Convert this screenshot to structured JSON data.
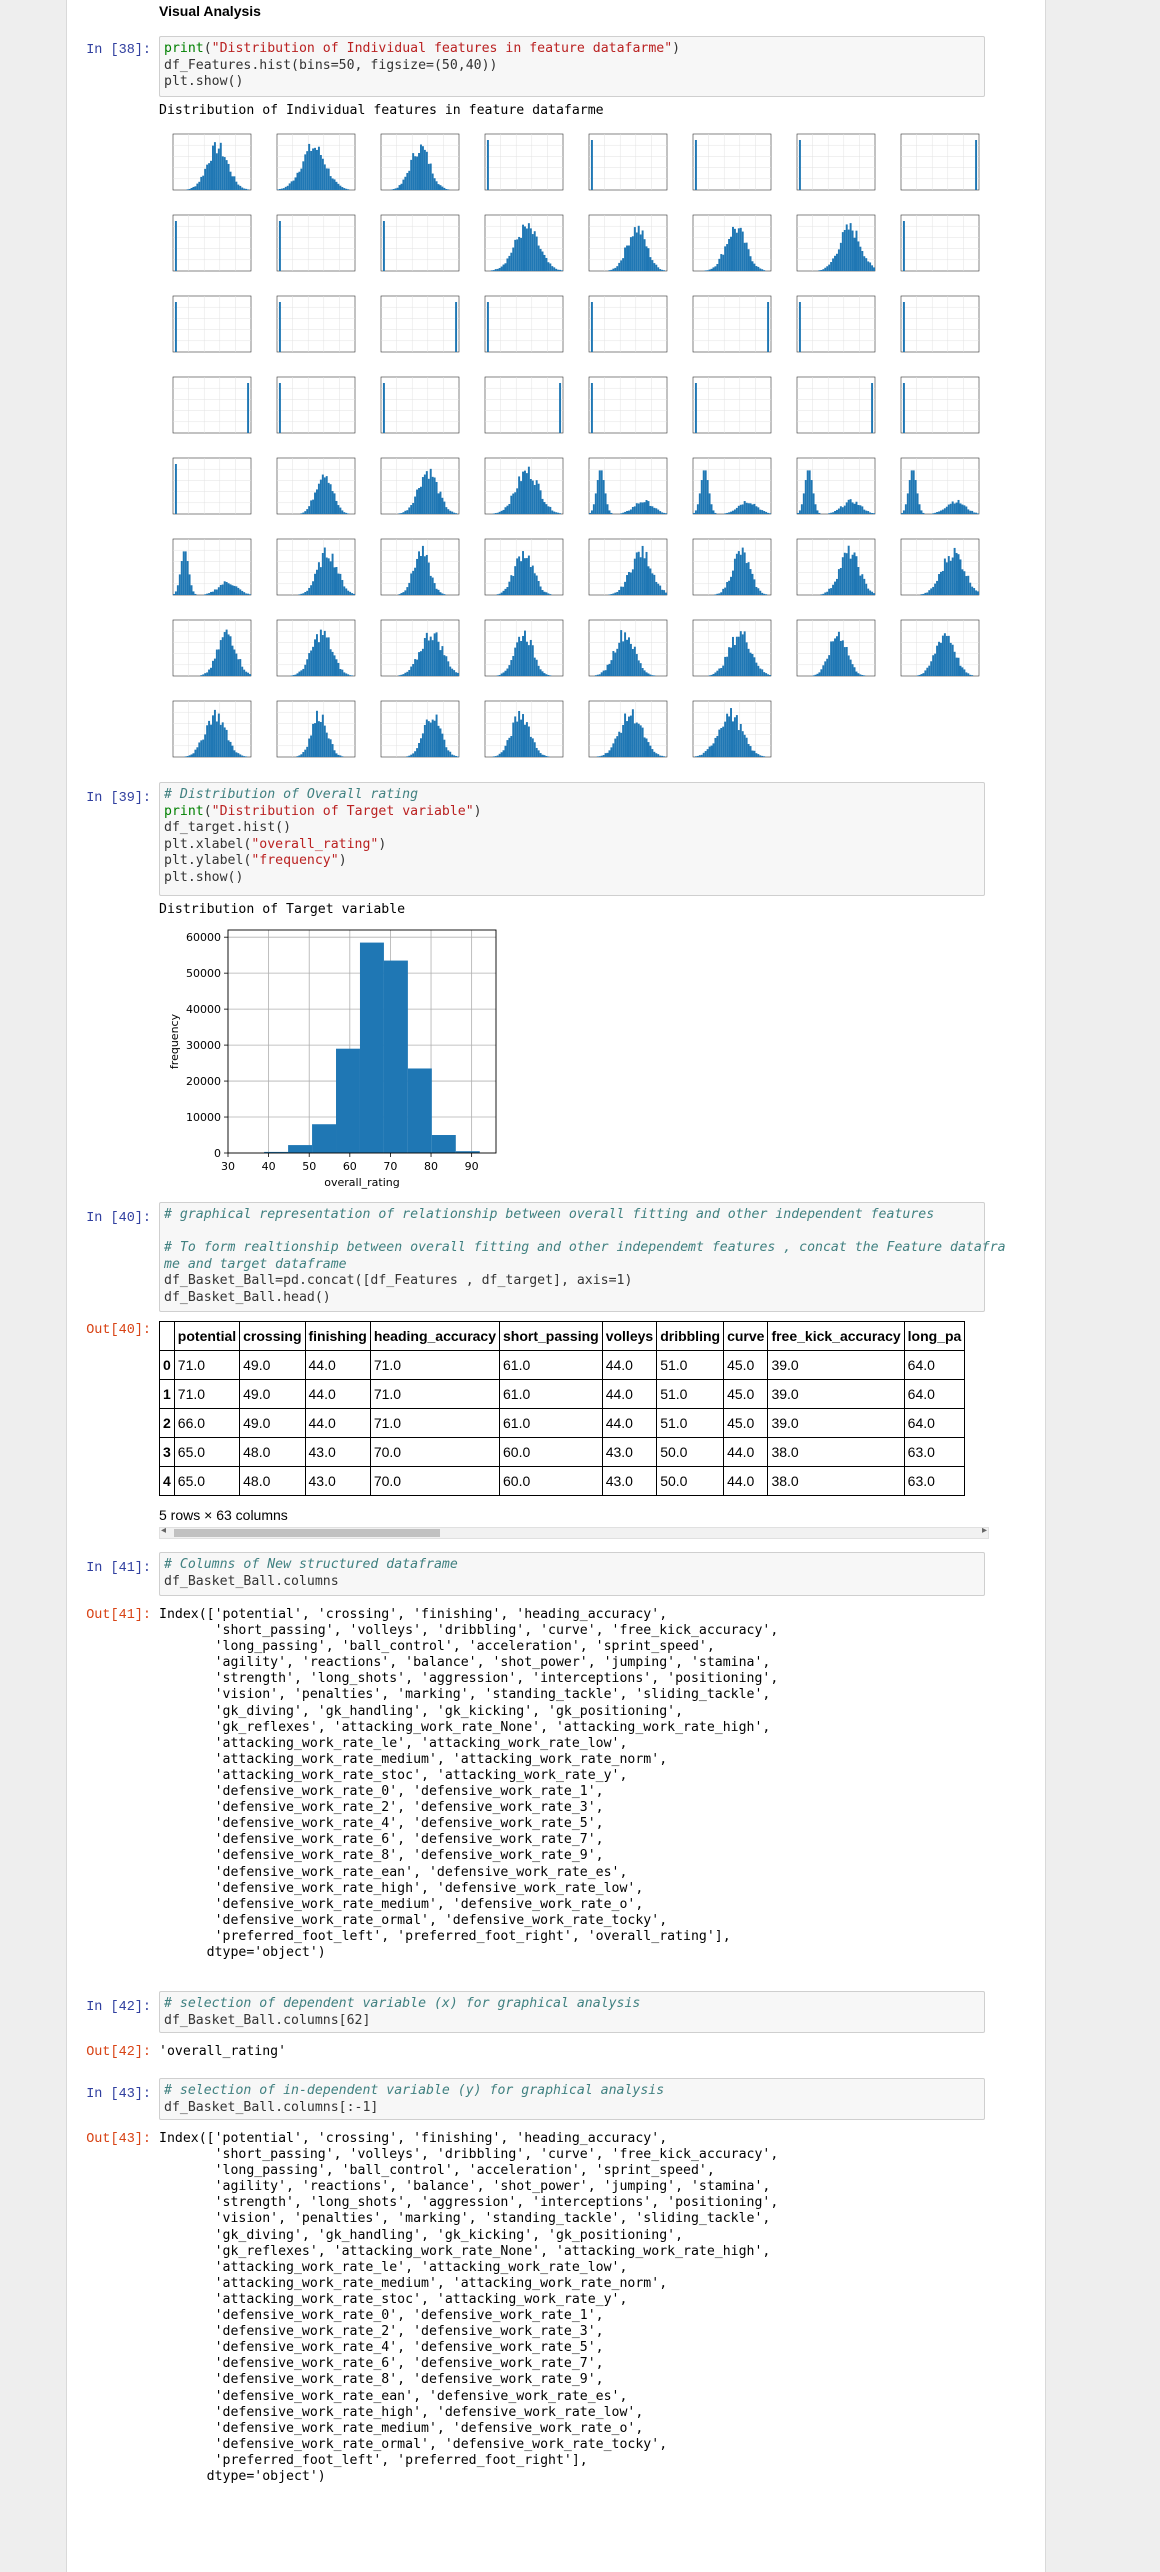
{
  "section_heading": "Visual Analysis",
  "cells": [
    {
      "in": "In [38]:"
    },
    {
      "in": "In [39]:"
    },
    {
      "in": "In [40]:",
      "out": "Out[40]:"
    },
    {
      "in": "In [41]:",
      "out": "Out[41]:"
    },
    {
      "in": "In [42]:",
      "out": "Out[42]:"
    },
    {
      "in": "In [43]:",
      "out": "Out[43]:"
    }
  ],
  "cell38": {
    "code1_fn": "print",
    "code1_str": "\"Distribution of Individual features in feature datafarme\"",
    "code2": "df_Features.hist(bins=50, figsize=(50,40))",
    "code3": "plt.show()",
    "output_text": "Distribution of Individual features in feature datafarme"
  },
  "cell39": {
    "comment": "# Distribution of Overall rating",
    "print_fn": "print",
    "print_str": "\"Distribution of Target variable\"",
    "line3": "df_target.hist()",
    "xlabel_call": "plt.xlabel(",
    "xlabel_str": "\"overall_rating\"",
    "ylabel_call": "plt.ylabel(",
    "ylabel_str": "\"frequency\"",
    "line6": "plt.show()",
    "output_text": "Distribution of Target variable"
  },
  "chart_data": {
    "type": "bar",
    "title": "",
    "xlabel": "overall_rating",
    "ylabel": "frequency",
    "xlim": [
      30,
      96
    ],
    "ylim": [
      0,
      62000
    ],
    "x_ticks": [
      30,
      40,
      50,
      60,
      70,
      80,
      90
    ],
    "y_ticks": [
      0,
      10000,
      20000,
      30000,
      40000,
      50000,
      60000
    ],
    "grid": true,
    "bins": [
      {
        "x0": 33.0,
        "x1": 38.9,
        "value": 0
      },
      {
        "x0": 38.9,
        "x1": 44.8,
        "value": 300
      },
      {
        "x0": 44.8,
        "x1": 50.7,
        "value": 2200
      },
      {
        "x0": 50.7,
        "x1": 56.6,
        "value": 8000
      },
      {
        "x0": 56.6,
        "x1": 62.5,
        "value": 29000
      },
      {
        "x0": 62.5,
        "x1": 68.4,
        "value": 58500
      },
      {
        "x0": 68.4,
        "x1": 74.3,
        "value": 53500
      },
      {
        "x0": 74.3,
        "x1": 80.2,
        "value": 23500
      },
      {
        "x0": 80.2,
        "x1": 86.1,
        "value": 5000
      },
      {
        "x0": 86.1,
        "x1": 92.0,
        "value": 500
      }
    ]
  },
  "cell40": {
    "comment1": "# graphical representation of relationship between overall fitting and other independent features",
    "comment2": "# To form realtionship between overall fitting and other independemt features , concat the Feature datafra",
    "comment3": "me and target dataframe",
    "line4": "df_Basket_Ball=pd.concat([df_Features , df_target], axis=1)",
    "line5": "df_Basket_Ball.head()",
    "columns": [
      "",
      "potential",
      "crossing",
      "finishing",
      "heading_accuracy",
      "short_passing",
      "volleys",
      "dribbling",
      "curve",
      "free_kick_accuracy",
      "long_pa"
    ],
    "rows": [
      [
        "0",
        "71.0",
        "49.0",
        "44.0",
        "71.0",
        "61.0",
        "44.0",
        "51.0",
        "45.0",
        "39.0",
        "64.0"
      ],
      [
        "1",
        "71.0",
        "49.0",
        "44.0",
        "71.0",
        "61.0",
        "44.0",
        "51.0",
        "45.0",
        "39.0",
        "64.0"
      ],
      [
        "2",
        "66.0",
        "49.0",
        "44.0",
        "71.0",
        "61.0",
        "44.0",
        "51.0",
        "45.0",
        "39.0",
        "64.0"
      ],
      [
        "3",
        "65.0",
        "48.0",
        "43.0",
        "70.0",
        "60.0",
        "43.0",
        "50.0",
        "44.0",
        "38.0",
        "63.0"
      ],
      [
        "4",
        "65.0",
        "48.0",
        "43.0",
        "70.0",
        "60.0",
        "43.0",
        "50.0",
        "44.0",
        "38.0",
        "63.0"
      ]
    ],
    "shape_text": "5 rows × 63 columns",
    "scroll_left": "◂",
    "scroll_right": "▸"
  },
  "cell41": {
    "comment": "# Columns of New structured dataframe",
    "line2": "df_Basket_Ball.columns",
    "output": "Index(['potential', 'crossing', 'finishing', 'heading_accuracy',\n       'short_passing', 'volleys', 'dribbling', 'curve', 'free_kick_accuracy',\n       'long_passing', 'ball_control', 'acceleration', 'sprint_speed',\n       'agility', 'reactions', 'balance', 'shot_power', 'jumping', 'stamina',\n       'strength', 'long_shots', 'aggression', 'interceptions', 'positioning',\n       'vision', 'penalties', 'marking', 'standing_tackle', 'sliding_tackle',\n       'gk_diving', 'gk_handling', 'gk_kicking', 'gk_positioning',\n       'gk_reflexes', 'attacking_work_rate_None', 'attacking_work_rate_high',\n       'attacking_work_rate_le', 'attacking_work_rate_low',\n       'attacking_work_rate_medium', 'attacking_work_rate_norm',\n       'attacking_work_rate_stoc', 'attacking_work_rate_y',\n       'defensive_work_rate_0', 'defensive_work_rate_1',\n       'defensive_work_rate_2', 'defensive_work_rate_3',\n       'defensive_work_rate_4', 'defensive_work_rate_5',\n       'defensive_work_rate_6', 'defensive_work_rate_7',\n       'defensive_work_rate_8', 'defensive_work_rate_9',\n       'defensive_work_rate_ean', 'defensive_work_rate_es',\n       'defensive_work_rate_high', 'defensive_work_rate_low',\n       'defensive_work_rate_medium', 'defensive_work_rate_o',\n       'defensive_work_rate_ormal', 'defensive_work_rate_tocky',\n       'preferred_foot_left', 'preferred_foot_right', 'overall_rating'],\n      dtype='object')"
  },
  "cell42": {
    "comment": "# selection of dependent variable (x) for graphical analysis",
    "line2": "df_Basket_Ball.columns[62]",
    "output": "'overall_rating'"
  },
  "cell43": {
    "comment": "# selection of in-dependent variable (y) for graphical analysis",
    "line2": "df_Basket_Ball.columns[:-1]",
    "output": "Index(['potential', 'crossing', 'finishing', 'heading_accuracy',\n       'short_passing', 'volleys', 'dribbling', 'curve', 'free_kick_accuracy',\n       'long_passing', 'ball_control', 'acceleration', 'sprint_speed',\n       'agility', 'reactions', 'balance', 'shot_power', 'jumping', 'stamina',\n       'strength', 'long_shots', 'aggression', 'interceptions', 'positioning',\n       'vision', 'penalties', 'marking', 'standing_tackle', 'sliding_tackle',\n       'gk_diving', 'gk_handling', 'gk_kicking', 'gk_positioning',\n       'gk_reflexes', 'attacking_work_rate_None', 'attacking_work_rate_high',\n       'attacking_work_rate_le', 'attacking_work_rate_low',\n       'attacking_work_rate_medium', 'attacking_work_rate_norm',\n       'attacking_work_rate_stoc', 'attacking_work_rate_y',\n       'defensive_work_rate_0', 'defensive_work_rate_1',\n       'defensive_work_rate_2', 'defensive_work_rate_3',\n       'defensive_work_rate_4', 'defensive_work_rate_5',\n       'defensive_work_rate_6', 'defensive_work_rate_7',\n       'defensive_work_rate_8', 'defensive_work_rate_9',\n       'defensive_work_rate_ean', 'defensive_work_rate_es',\n       'defensive_work_rate_high', 'defensive_work_rate_low',\n       'defensive_work_rate_medium', 'defensive_work_rate_o',\n       'defensive_work_rate_ormal', 'defensive_work_rate_tocky',\n       'preferred_foot_left', 'preferred_foot_right'],\n      dtype='object')"
  },
  "colors": {
    "accent_in": "#303f9f",
    "accent_out": "#d84315",
    "bar": "#1f77b4"
  }
}
